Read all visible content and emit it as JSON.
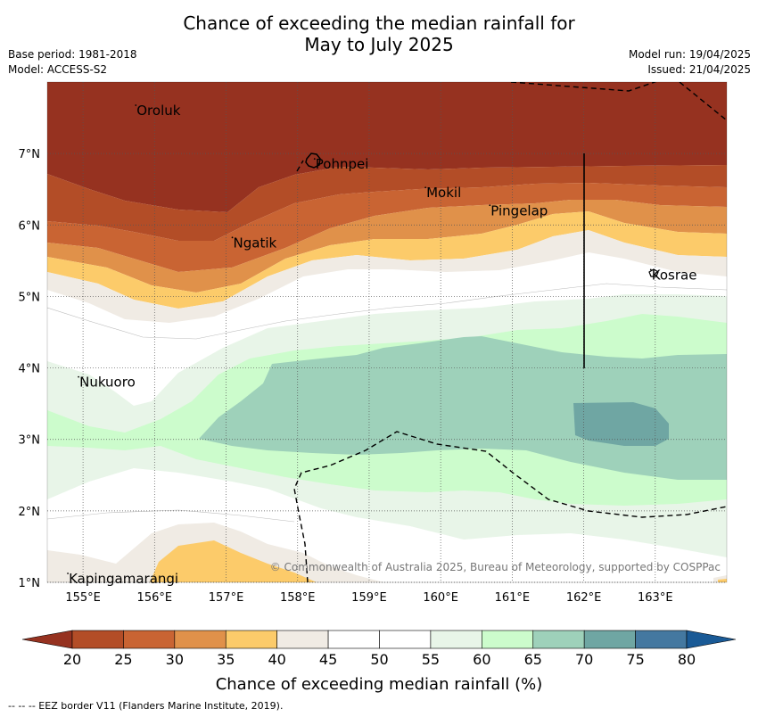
{
  "title_line1": "Chance of exceeding the median rainfall for",
  "title_line2": "May to July 2025",
  "base_period": "Base period: 1981-2018",
  "model": "Model: ACCESS-S2",
  "model_run": "Model run: 19/04/2025",
  "issued": "Issued: 21/04/2025",
  "copyright": "© Commonwealth of Australia 2025, Bureau of Meteorology, supported by COSPPac",
  "footer_note": "-- -- -- EEZ border V11 (Flanders Marine Institute, 2019).",
  "x_ticks": [
    "155°E",
    "156°E",
    "157°E",
    "158°E",
    "159°E",
    "160°E",
    "161°E",
    "162°E",
    "163°E"
  ],
  "y_ticks": [
    "1°N",
    "2°N",
    "3°N",
    "4°N",
    "5°N",
    "6°N",
    "7°N"
  ],
  "places": [
    {
      "name": "Oroluk",
      "lon": 155.75,
      "lat": 7.6
    },
    {
      "name": "Pohnpei",
      "lon": 158.25,
      "lat": 6.85
    },
    {
      "name": "Mokil",
      "lon": 159.8,
      "lat": 6.45
    },
    {
      "name": "Pingelap",
      "lon": 160.7,
      "lat": 6.2
    },
    {
      "name": "Ngatik",
      "lon": 157.1,
      "lat": 5.75
    },
    {
      "name": "Kosrae",
      "lon": 162.95,
      "lat": 5.3
    },
    {
      "name": "Nukuoro",
      "lon": 154.95,
      "lat": 3.8
    },
    {
      "name": "Kapingamarangi",
      "lon": 154.8,
      "lat": 1.05
    }
  ],
  "colorbar": {
    "label": "Chance of exceeding median rainfall (%)",
    "ticks": [
      "20",
      "25",
      "30",
      "35",
      "40",
      "45",
      "50",
      "55",
      "60",
      "65",
      "70",
      "75",
      "80"
    ],
    "colors": [
      "#963220",
      "#b34d27",
      "#c96433",
      "#e0914a",
      "#fccb6a",
      "#f0ebe4",
      "#ffffff",
      "#ffffff",
      "#e8f5e8",
      "#ccfccc",
      "#9ed1ba",
      "#6fa6a3",
      "#4478a0",
      "#1a5a96"
    ]
  },
  "map_extent": {
    "lon": [
      154.5,
      164.0
    ],
    "lat": [
      1.0,
      8.0
    ]
  }
}
